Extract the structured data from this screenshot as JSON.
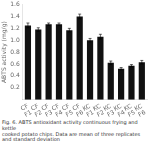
{
  "chart_data": {
    "type": "bar",
    "categories": [
      "CF\nF1",
      "CF\nF2",
      "CF\nF3",
      "CF\nF4",
      "CF\nF5",
      "CF\nF6",
      "KC\nF1",
      "KC\nF2",
      "KC\nF3",
      "KC\nF4",
      "KC\nF5",
      "KC\nF6"
    ],
    "values": [
      1.25,
      1.18,
      1.27,
      1.27,
      1.17,
      1.4,
      1.0,
      1.06,
      0.62,
      0.52,
      0.57,
      0.63
    ],
    "errors": [
      0.04,
      0.03,
      0.02,
      0.02,
      0.03,
      0.04,
      0.03,
      0.04,
      0.03,
      0.02,
      0.02,
      0.03
    ],
    "color": "#111111",
    "ylabel": "ABTS activity (mg/g)",
    "ylim": [
      0.0,
      1.6
    ],
    "yticks": [
      0.2,
      0.4,
      0.6,
      0.8,
      {
        "value": 1.0,
        "label": "1.0"
      },
      1.2,
      1.4,
      1.6
    ],
    "grid": false,
    "caption": "Fig. 6. ABTS antioxidant activity continuous frying and kettle\ncooked potato chips. Data are mean of three replicates and standard deviation"
  }
}
